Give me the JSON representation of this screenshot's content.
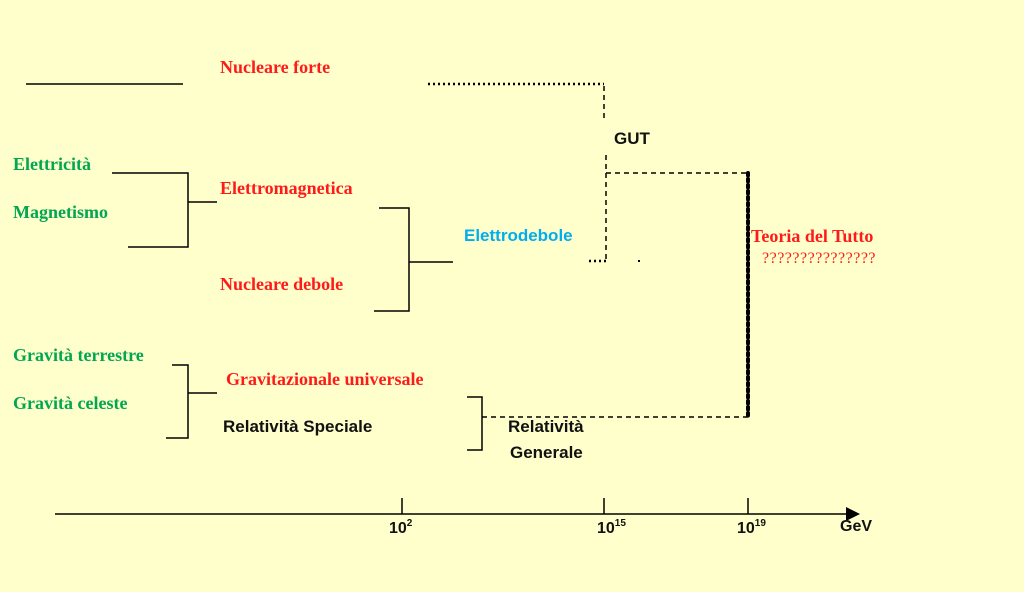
{
  "forces": {
    "elettricita": "Elettricità",
    "magnetismo": "Magnetismo",
    "gravita_terrestre": "Gravità terrestre",
    "gravita_celeste": "Gravità celeste",
    "nucleare_forte": "Nucleare forte",
    "elettromagnetica": "Elettromagnetica",
    "nucleare_debole": "Nucleare debole",
    "gravitazionale_universale": "Gravitazionale universale",
    "relativita_speciale": "Relatività Speciale",
    "relativita_generale_1": "Relatività",
    "relativita_generale_2": "Generale",
    "elettrodebole": "Elettrodebole",
    "gut": "GUT",
    "teoria_del_tutto": "Teoria del Tutto",
    "question_marks": "???????????????"
  },
  "axis": {
    "unit": "GeV",
    "ticks": [
      {
        "base": "10",
        "exp": "2"
      },
      {
        "base": "10",
        "exp": "15"
      },
      {
        "base": "10",
        "exp": "19"
      }
    ]
  },
  "colors": {
    "background": "#ffffcc",
    "classical": "#00a651",
    "unified": "#ff1a1a",
    "electroweak": "#00aeef",
    "lines": "#000000"
  }
}
